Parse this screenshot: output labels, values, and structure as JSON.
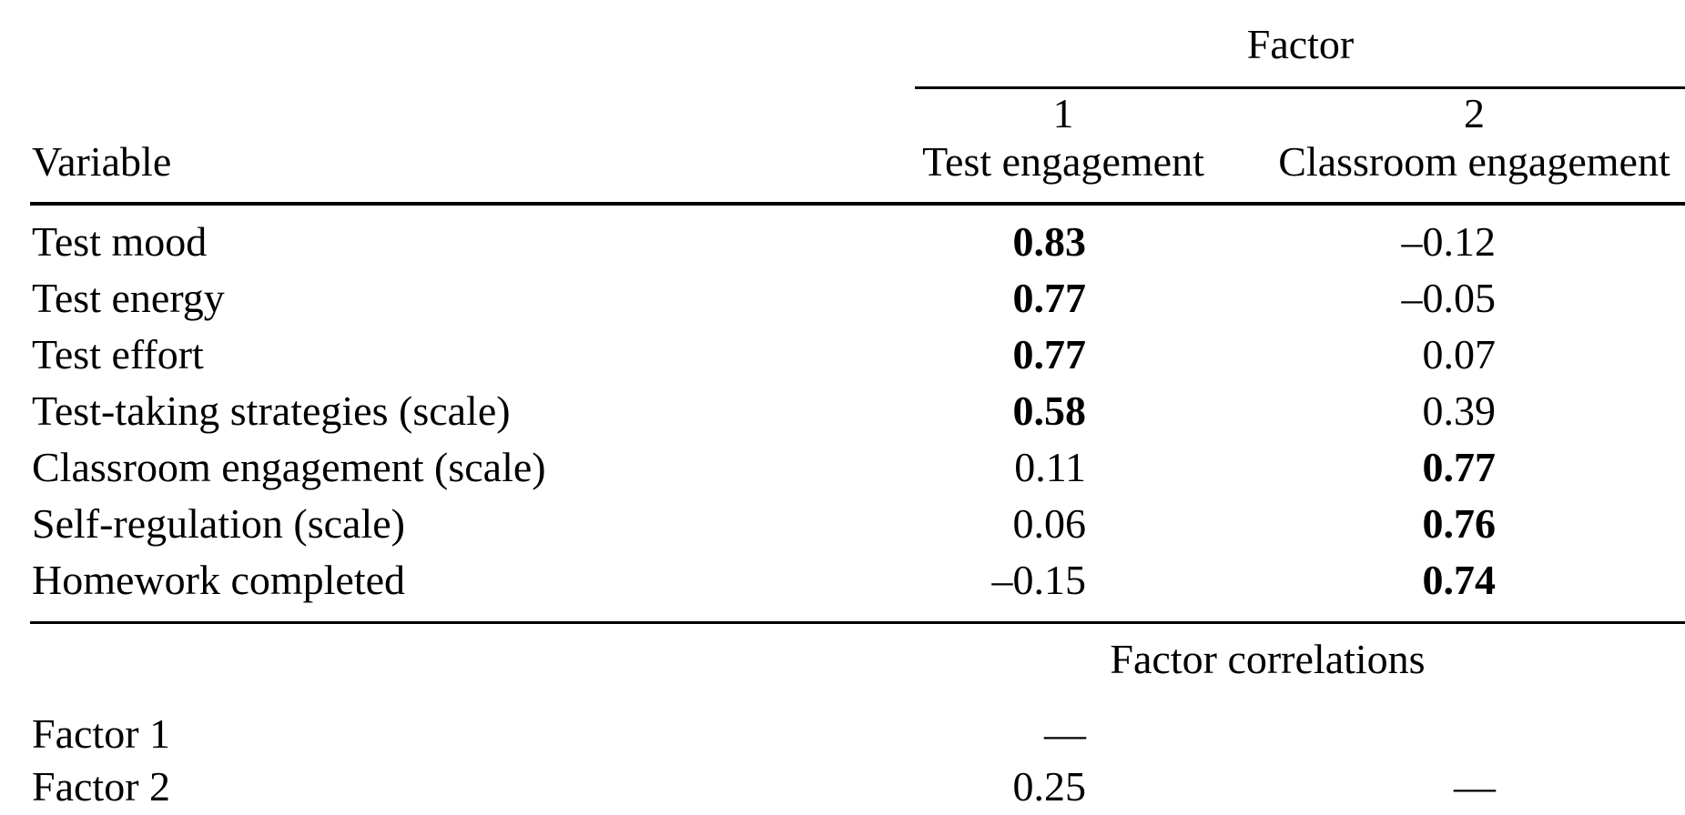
{
  "page": {
    "background": "#ffffff",
    "text_color": "#000000"
  },
  "table": {
    "spanner_label": "Factor",
    "variable_header": "Variable",
    "factor_columns": [
      {
        "number": "1",
        "name": "Test engagement"
      },
      {
        "number": "2",
        "name": "Classroom engagement"
      }
    ],
    "loadings": [
      {
        "variable": "Test mood",
        "factor1": "0.83",
        "factor1_bold": true,
        "factor2": "–0.12",
        "factor2_bold": false
      },
      {
        "variable": "Test energy",
        "factor1": "0.77",
        "factor1_bold": true,
        "factor2": "–0.05",
        "factor2_bold": false
      },
      {
        "variable": "Test effort",
        "factor1": "0.77",
        "factor1_bold": true,
        "factor2": "0.07",
        "factor2_bold": false
      },
      {
        "variable": "Test-taking strategies (scale)",
        "factor1": "0.58",
        "factor1_bold": true,
        "factor2": "0.39",
        "factor2_bold": false
      },
      {
        "variable": "Classroom engagement (scale)",
        "factor1": "0.11",
        "factor1_bold": false,
        "factor2": "0.77",
        "factor2_bold": true
      },
      {
        "variable": "Self-regulation (scale)",
        "factor1": "0.06",
        "factor1_bold": false,
        "factor2": "0.76",
        "factor2_bold": true
      },
      {
        "variable": "Homework completed",
        "factor1": "–0.15",
        "factor1_bold": false,
        "factor2": "0.74",
        "factor2_bold": true
      }
    ],
    "correlations": {
      "heading": "Factor correlations",
      "rows": [
        {
          "variable": "Factor 1",
          "factor1": "—",
          "factor2": ""
        },
        {
          "variable": "Factor 2",
          "factor1": "0.25",
          "factor2": "—"
        }
      ]
    }
  }
}
